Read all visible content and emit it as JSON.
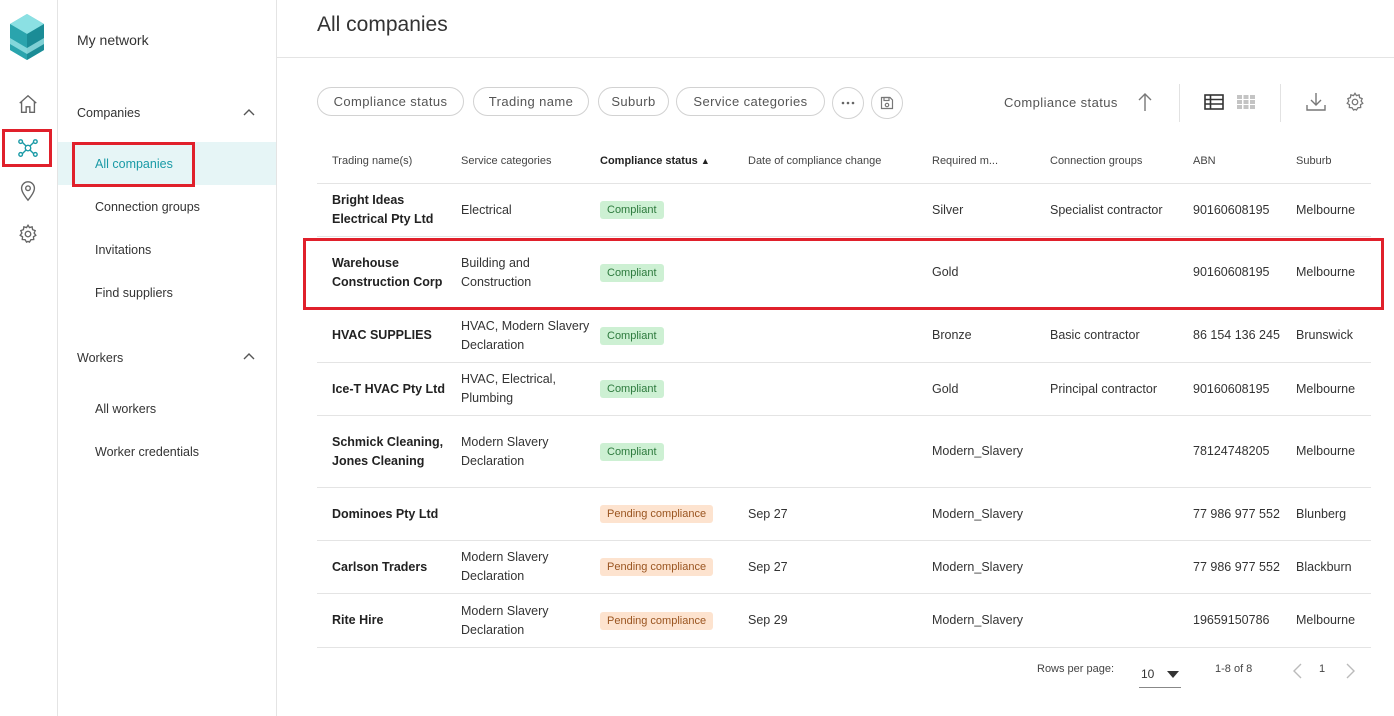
{
  "rail": {
    "icons": [
      "logo-icon",
      "home-icon",
      "network-icon",
      "location-pin-icon",
      "gear-icon"
    ]
  },
  "subnav": {
    "title": "My network",
    "groups": [
      {
        "label": "Companies",
        "items": [
          "All companies",
          "Connection groups",
          "Invitations",
          "Find suppliers"
        ]
      },
      {
        "label": "Workers",
        "items": [
          "All workers",
          "Worker credentials"
        ]
      }
    ]
  },
  "page": {
    "title": "All companies"
  },
  "filters": {
    "chips": [
      "Compliance status",
      "Trading name",
      "Suburb",
      "Service categories"
    ],
    "sort_label": "Compliance status"
  },
  "colors": {
    "accent": "#1a9aa6",
    "highlight": "#e0202b",
    "compliant_bg": "#cdf0d3",
    "pending_bg": "#fde3cf"
  },
  "table": {
    "columns": [
      "Trading name(s)",
      "Service categories",
      "Compliance status",
      "Date of compliance change",
      "Required m...",
      "Connection groups",
      "ABN",
      "Suburb"
    ],
    "rows": [
      {
        "name": "Bright Ideas Electrical Pty Ltd",
        "categories": "Electrical",
        "status": "Compliant",
        "date": "",
        "required": "Silver",
        "group": "Specialist contractor",
        "abn": "90160608195",
        "suburb": "Melbourne"
      },
      {
        "name": "Warehouse Construction Corp",
        "categories": "Building and Construction",
        "status": "Compliant",
        "date": "",
        "required": "Gold",
        "group": "",
        "abn": "90160608195",
        "suburb": "Melbourne"
      },
      {
        "name": "HVAC SUPPLIES",
        "categories": "HVAC, Modern Slavery Declaration",
        "status": "Compliant",
        "date": "",
        "required": "Bronze",
        "group": "Basic contractor",
        "abn": "86 154 136 245",
        "suburb": "Brunswick"
      },
      {
        "name": "Ice-T HVAC Pty Ltd",
        "categories": "HVAC, Electrical, Plumbing",
        "status": "Compliant",
        "date": "",
        "required": "Gold",
        "group": "Principal contractor",
        "abn": "90160608195",
        "suburb": "Melbourne"
      },
      {
        "name": "Schmick Cleaning, Jones Cleaning",
        "categories": "Modern Slavery Declaration",
        "status": "Compliant",
        "date": "",
        "required": "Modern_Slavery",
        "group": "",
        "abn": "78124748205",
        "suburb": "Melbourne"
      },
      {
        "name": "Dominoes Pty Ltd",
        "categories": "",
        "status": "Pending compliance",
        "date": "Sep 27",
        "required": "Modern_Slavery",
        "group": "",
        "abn": "77 986 977 552",
        "suburb": "Blunberg"
      },
      {
        "name": "Carlson Traders",
        "categories": "Modern Slavery Declaration",
        "status": "Pending compliance",
        "date": "Sep 27",
        "required": "Modern_Slavery",
        "group": "",
        "abn": "77 986 977 552",
        "suburb": "Blackburn"
      },
      {
        "name": "Rite Hire",
        "categories": "Modern Slavery Declaration",
        "status": "Pending compliance",
        "date": "Sep 29",
        "required": "Modern_Slavery",
        "group": "",
        "abn": "19659150786",
        "suburb": "Melbourne"
      }
    ]
  },
  "footer": {
    "rows_per_page_label": "Rows per page:",
    "rows_per_page_value": "10",
    "range": "1-8 of 8",
    "page": "1"
  }
}
